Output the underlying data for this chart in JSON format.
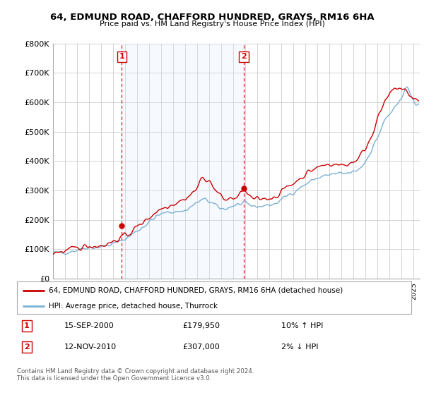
{
  "title": "64, EDMUND ROAD, CHAFFORD HUNDRED, GRAYS, RM16 6HA",
  "subtitle": "Price paid vs. HM Land Registry's House Price Index (HPI)",
  "legend_line1": "64, EDMUND ROAD, CHAFFORD HUNDRED, GRAYS, RM16 6HA (detached house)",
  "legend_line2": "HPI: Average price, detached house, Thurrock",
  "footnote": "Contains HM Land Registry data © Crown copyright and database right 2024.\nThis data is licensed under the Open Government Licence v3.0.",
  "sale1_date": "15-SEP-2000",
  "sale1_price": "£179,950",
  "sale1_hpi": "10% ↑ HPI",
  "sale2_date": "12-NOV-2010",
  "sale2_price": "£307,000",
  "sale2_hpi": "2% ↓ HPI",
  "red_color": "#cc0000",
  "blue_color": "#7ab0d4",
  "shade_color": "#ddeeff",
  "marker_color": "#cc0000",
  "background_color": "#ffffff",
  "grid_color": "#cccccc",
  "xlim": [
    1995.0,
    2025.5
  ],
  "ylim": [
    0,
    800000
  ],
  "yticks": [
    0,
    100000,
    200000,
    300000,
    400000,
    500000,
    600000,
    700000,
    800000
  ],
  "ytick_labels": [
    "£0",
    "£100K",
    "£200K",
    "£300K",
    "£400K",
    "£500K",
    "£600K",
    "£700K",
    "£800K"
  ],
  "sale1_x": 2000.71,
  "sale1_y": 179950,
  "sale2_x": 2010.87,
  "sale2_y": 307000,
  "vline1_x": 2000.71,
  "vline2_x": 2010.87
}
